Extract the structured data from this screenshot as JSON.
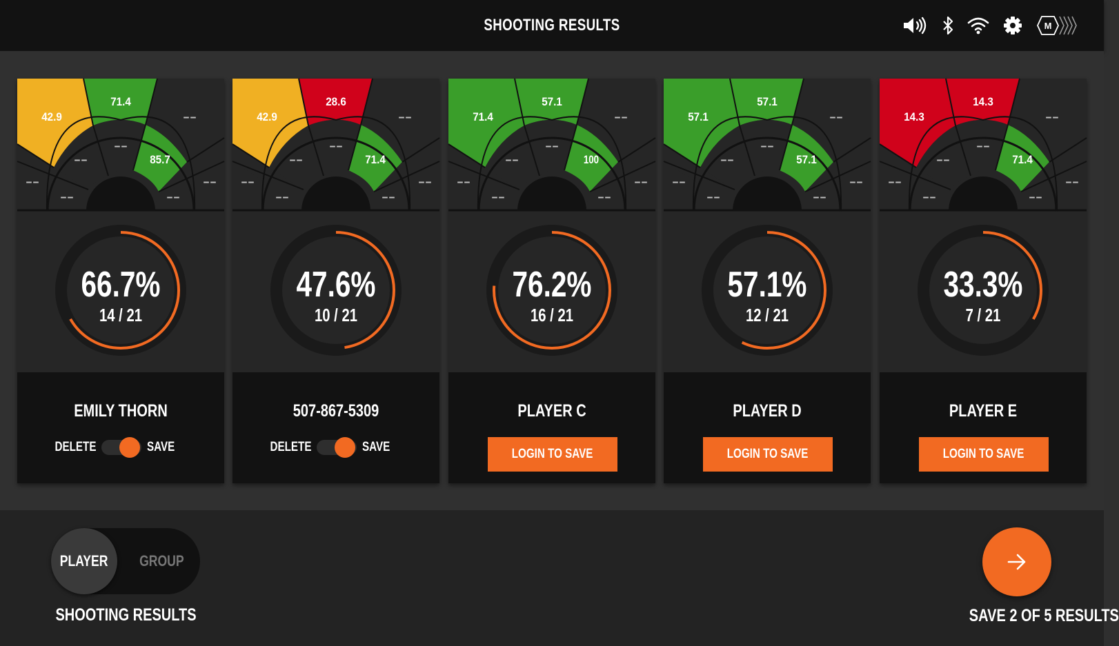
{
  "header": {
    "title": "SHOOTING RESULTS"
  },
  "status_icons": [
    "volume-icon",
    "bluetooth-icon",
    "wifi-icon",
    "gear-icon",
    "brand-logo-icon"
  ],
  "brand_logo_letter": "M",
  "colors": {
    "yellow": "#f0b023",
    "green": "#3a9e2a",
    "red": "#d0021b",
    "orange": "#f26a22",
    "dark": "#262626"
  },
  "cards": [
    {
      "name": "EMILY THORN",
      "percent": "66.7%",
      "fraction": "14 / 21",
      "ring_fraction": 0.667,
      "zones": {
        "corner_left": {
          "label": "--",
          "color": "dark"
        },
        "wing_left": {
          "label": "42.9",
          "color": "yellow"
        },
        "top_three": {
          "label": "71.4",
          "color": "green"
        },
        "wing_right": {
          "label": "--",
          "color": "dark"
        },
        "corner_right": {
          "label": "--",
          "color": "dark"
        },
        "mid_left": {
          "label": "--",
          "color": "dark"
        },
        "mid_top": {
          "label": "--",
          "color": "dark"
        },
        "mid_right": {
          "label": "85.7",
          "color": "green"
        },
        "base_left": {
          "label": "--",
          "color": "dark"
        },
        "base_right": {
          "label": "--",
          "color": "dark"
        }
      },
      "action": {
        "type": "toggle",
        "delete_label": "DELETE",
        "save_label": "SAVE",
        "state": "save"
      }
    },
    {
      "name": "507-867-5309",
      "percent": "47.6%",
      "fraction": "10 / 21",
      "ring_fraction": 0.476,
      "zones": {
        "corner_left": {
          "label": "--",
          "color": "dark"
        },
        "wing_left": {
          "label": "42.9",
          "color": "yellow"
        },
        "top_three": {
          "label": "28.6",
          "color": "red"
        },
        "wing_right": {
          "label": "--",
          "color": "dark"
        },
        "corner_right": {
          "label": "--",
          "color": "dark"
        },
        "mid_left": {
          "label": "--",
          "color": "dark"
        },
        "mid_top": {
          "label": "--",
          "color": "dark"
        },
        "mid_right": {
          "label": "71.4",
          "color": "green"
        },
        "base_left": {
          "label": "--",
          "color": "dark"
        },
        "base_right": {
          "label": "--",
          "color": "dark"
        }
      },
      "action": {
        "type": "toggle",
        "delete_label": "DELETE",
        "save_label": "SAVE",
        "state": "save"
      }
    },
    {
      "name": "PLAYER C",
      "percent": "76.2%",
      "fraction": "16 / 21",
      "ring_fraction": 0.762,
      "zones": {
        "corner_left": {
          "label": "--",
          "color": "dark"
        },
        "wing_left": {
          "label": "71.4",
          "color": "green"
        },
        "top_three": {
          "label": "57.1",
          "color": "green"
        },
        "wing_right": {
          "label": "--",
          "color": "dark"
        },
        "corner_right": {
          "label": "--",
          "color": "dark"
        },
        "mid_left": {
          "label": "--",
          "color": "dark"
        },
        "mid_top": {
          "label": "--",
          "color": "dark"
        },
        "mid_right": {
          "label": "100",
          "color": "green"
        },
        "base_left": {
          "label": "--",
          "color": "dark"
        },
        "base_right": {
          "label": "--",
          "color": "dark"
        }
      },
      "action": {
        "type": "login",
        "label": "LOGIN TO SAVE"
      }
    },
    {
      "name": "PLAYER D",
      "percent": "57.1%",
      "fraction": "12 / 21",
      "ring_fraction": 0.571,
      "zones": {
        "corner_left": {
          "label": "--",
          "color": "dark"
        },
        "wing_left": {
          "label": "57.1",
          "color": "green"
        },
        "top_three": {
          "label": "57.1",
          "color": "green"
        },
        "wing_right": {
          "label": "--",
          "color": "dark"
        },
        "corner_right": {
          "label": "--",
          "color": "dark"
        },
        "mid_left": {
          "label": "--",
          "color": "dark"
        },
        "mid_top": {
          "label": "--",
          "color": "dark"
        },
        "mid_right": {
          "label": "57.1",
          "color": "green"
        },
        "base_left": {
          "label": "--",
          "color": "dark"
        },
        "base_right": {
          "label": "--",
          "color": "dark"
        }
      },
      "action": {
        "type": "login",
        "label": "LOGIN TO SAVE"
      }
    },
    {
      "name": "PLAYER E",
      "percent": "33.3%",
      "fraction": "7 / 21",
      "ring_fraction": 0.333,
      "zones": {
        "corner_left": {
          "label": "--",
          "color": "dark"
        },
        "wing_left": {
          "label": "14.3",
          "color": "red"
        },
        "top_three": {
          "label": "14.3",
          "color": "red"
        },
        "wing_right": {
          "label": "--",
          "color": "dark"
        },
        "corner_right": {
          "label": "--",
          "color": "dark"
        },
        "mid_left": {
          "label": "--",
          "color": "dark"
        },
        "mid_top": {
          "label": "--",
          "color": "dark"
        },
        "mid_right": {
          "label": "71.4",
          "color": "green"
        },
        "base_left": {
          "label": "--",
          "color": "dark"
        },
        "base_right": {
          "label": "--",
          "color": "dark"
        }
      },
      "action": {
        "type": "login",
        "label": "LOGIN TO SAVE"
      }
    }
  ],
  "bottom": {
    "mode_options": [
      "PLAYER",
      "GROUP"
    ],
    "selected_mode": "PLAYER",
    "mode_caption": "SHOOTING RESULTS",
    "next_icon": "arrow-right-icon",
    "save_count": "SAVE 2 OF 5 RESULTS"
  }
}
